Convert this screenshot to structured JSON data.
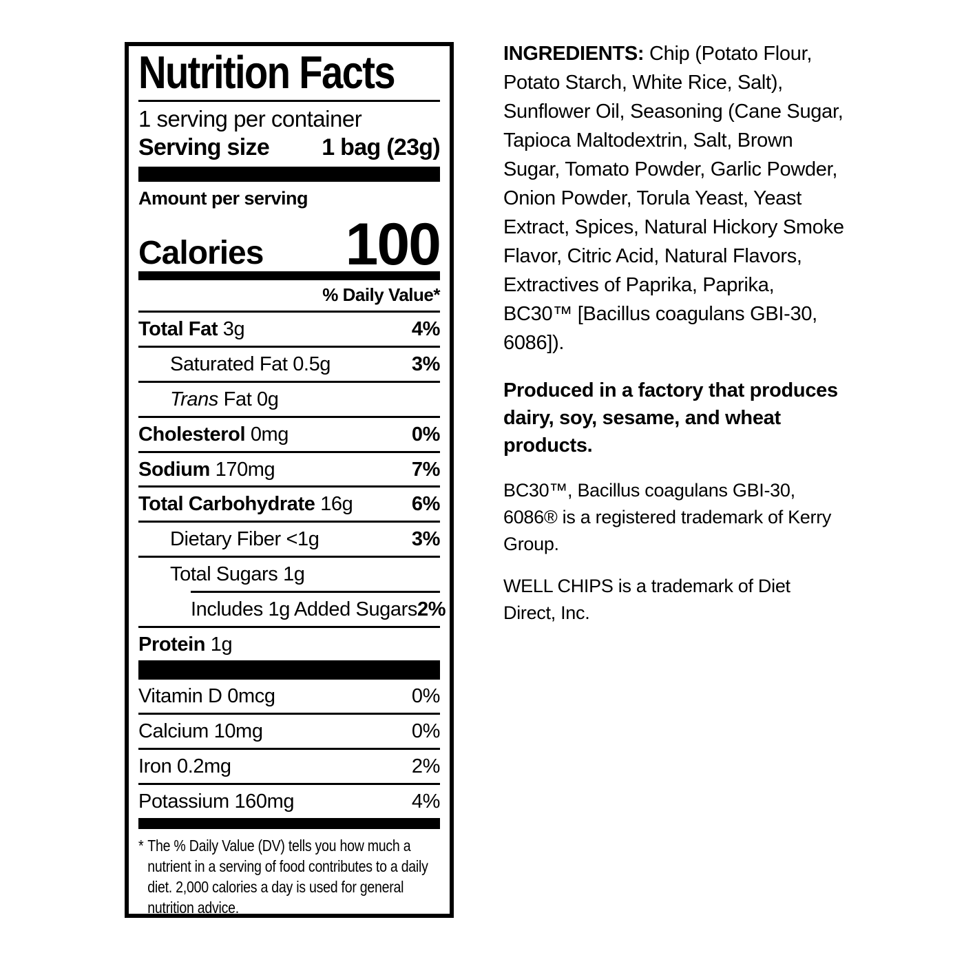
{
  "label": {
    "title": "Nutrition Facts",
    "servings_per_container": "1 serving per container",
    "serving_size_label": "Serving size",
    "serving_size_value": "1 bag (23g)",
    "amount_per_serving": "Amount per serving",
    "calories_label": "Calories",
    "calories_value": "100",
    "daily_value_header": "% Daily Value*",
    "rows": [
      {
        "name": "Total Fat",
        "amount": "3g",
        "dv": "4%"
      },
      {
        "name": "Saturated Fat",
        "amount": "0.5g",
        "dv": "3%"
      },
      {
        "name": "Trans",
        "amount": "Fat 0g",
        "dv": ""
      },
      {
        "name": "Cholesterol",
        "amount": "0mg",
        "dv": "0%"
      },
      {
        "name": "Sodium",
        "amount": "170mg",
        "dv": "7%"
      },
      {
        "name": "Total Carbohydrate",
        "amount": "16g",
        "dv": "6%"
      },
      {
        "name": "Dietary Fiber",
        "amount": "<1g",
        "dv": "3%"
      },
      {
        "name": "Total Sugars",
        "amount": "1g",
        "dv": ""
      },
      {
        "name": "Includes 1g Added Sugars",
        "amount": "",
        "dv": "2%"
      },
      {
        "name": "Protein",
        "amount": "1g",
        "dv": ""
      }
    ],
    "micronutrients": [
      {
        "name": "Vitamin D 0mcg",
        "dv": "0%"
      },
      {
        "name": "Calcium 10mg",
        "dv": "0%"
      },
      {
        "name": "Iron 0.2mg",
        "dv": "2%"
      },
      {
        "name": "Potassium 160mg",
        "dv": "4%"
      }
    ],
    "footnote_symbol": "*",
    "footnote_text": "The % Daily Value (DV) tells you how much a nutrient in a serving of food contributes to a daily diet. 2,000 calories a day is used for general nutrition advice."
  },
  "right_column": {
    "ingredients_label": "INGREDIENTS:",
    "ingredients_text": "Chip (Potato Flour, Potato Starch, White Rice, Salt), Sunflower Oil, Seasoning (Cane Sugar, Tapioca Maltodextrin, Salt, Brown Sugar, Tomato Powder, Garlic Powder, Onion Powder, Torula Yeast, Yeast Extract, Spices, Natural Hickory Smoke Flavor, Citric Acid, Natural Flavors, Extractives of Paprika, Paprika, BC30™ [Bacillus coagulans GBI-30, 6086]).",
    "allergen_notice": "Produced in a factory that produces dairy, soy, sesame, and wheat products.",
    "trademark_bc30": "BC30™, Bacillus coagulans GBI-30, 6086® is a registered trademark of Kerry Group.",
    "trademark_wellchips": "WELL CHIPS is a trademark of Diet Direct, Inc."
  },
  "colors": {
    "ink": "#000000",
    "background": "#ffffff"
  }
}
